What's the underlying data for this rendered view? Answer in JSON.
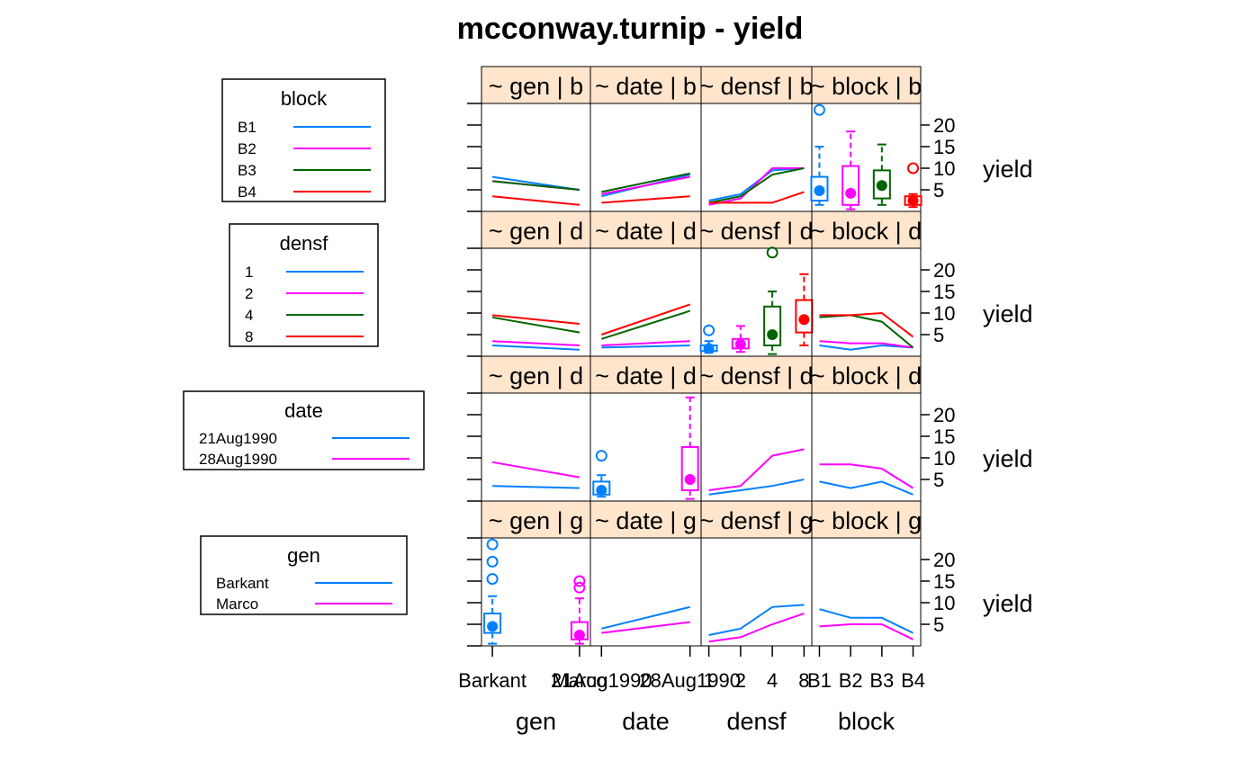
{
  "colors": {
    "c1": "#0080ff",
    "c2": "#ff00ff",
    "c3": "#006400",
    "c4": "#ff0000",
    "strip": "#ffe5cc",
    "panel_border": "#000000"
  },
  "chart_data": {
    "type": "scatterplot-matrix",
    "title": "mcconway.turnip - yield",
    "response": "yield",
    "ylim": [
      0,
      25
    ],
    "yticks": [
      5,
      10,
      15,
      20
    ],
    "columns": [
      {
        "name": "gen",
        "levels": [
          "Barkant",
          "Marco"
        ],
        "tick_labels": [
          "Barkant",
          "Marco"
        ]
      },
      {
        "name": "date",
        "levels": [
          "21Aug1990",
          "28Aug1990"
        ],
        "tick_labels": [
          "21Aug1990",
          "28Aug1990"
        ]
      },
      {
        "name": "densf",
        "levels": [
          "1",
          "2",
          "4",
          "8"
        ],
        "tick_labels": [
          "1",
          "2",
          "4",
          "8"
        ]
      },
      {
        "name": "block",
        "levels": [
          "B1",
          "B2",
          "B3",
          "B4"
        ],
        "tick_labels": [
          "B1",
          "B2",
          "B3",
          "B4"
        ]
      }
    ],
    "strip_labels": [
      [
        "~ gen | b",
        "~ date | b",
        "~ densf | b",
        "~ block | b"
      ],
      [
        "~ gen | d",
        "~ date | d",
        "~ densf | d",
        "~ block | d"
      ],
      [
        "~ gen | d",
        "~ date | d",
        "~ densf | d",
        "~ block | d"
      ],
      [
        "~ gen | g",
        "~ date | g",
        "~ densf | g",
        "~ block | g"
      ]
    ],
    "rows": [
      {
        "group": "block",
        "group_levels": [
          "B1",
          "B2",
          "B3",
          "B4"
        ],
        "panels": [
          {
            "kind": "lines",
            "series": [
              [
                8.0,
                5.0
              ],
              [
                7.0,
                5.0
              ],
              [
                7.0,
                5.0
              ],
              [
                3.5,
                1.5
              ]
            ]
          },
          {
            "kind": "lines",
            "series": [
              [
                3.5,
                8.5
              ],
              [
                4.0,
                8.0
              ],
              [
                4.5,
                8.8
              ],
              [
                2.0,
                3.5
              ]
            ]
          },
          {
            "kind": "lines",
            "series": [
              [
                2.5,
                4.0,
                9.5,
                10.0
              ],
              [
                1.5,
                3.0,
                10.0,
                10.0
              ],
              [
                2.0,
                3.5,
                8.5,
                10.0
              ],
              [
                2.0,
                2.0,
                2.0,
                4.5
              ]
            ]
          },
          {
            "kind": "box",
            "boxes": [
              {
                "min": 1.5,
                "q1": 2.5,
                "med": 4.8,
                "q3": 8.0,
                "max": 15.0,
                "out": [
                  23.5
                ]
              },
              {
                "min": 0.5,
                "q1": 1.5,
                "med": 4.2,
                "q3": 10.5,
                "max": 18.5,
                "out": []
              },
              {
                "min": 1.5,
                "q1": 3.0,
                "med": 6.0,
                "q3": 9.5,
                "max": 15.5,
                "out": []
              },
              {
                "min": 1.0,
                "q1": 1.5,
                "med": 2.5,
                "q3": 3.5,
                "max": 4.0,
                "out": [
                  10.0
                ]
              }
            ]
          }
        ]
      },
      {
        "group": "densf",
        "group_levels": [
          "1",
          "2",
          "4",
          "8"
        ],
        "panels": [
          {
            "kind": "lines",
            "series": [
              [
                2.5,
                1.5
              ],
              [
                3.5,
                2.5
              ],
              [
                9.0,
                5.5
              ],
              [
                9.5,
                7.5
              ]
            ]
          },
          {
            "kind": "lines",
            "series": [
              [
                2.0,
                2.5
              ],
              [
                2.5,
                3.5
              ],
              [
                4.0,
                10.5
              ],
              [
                5.0,
                12.0
              ]
            ]
          },
          {
            "kind": "box",
            "boxes": [
              {
                "min": 0.8,
                "q1": 1.2,
                "med": 1.8,
                "q3": 2.5,
                "max": 3.5,
                "out": [
                  6.0
                ]
              },
              {
                "min": 1.0,
                "q1": 1.8,
                "med": 2.8,
                "q3": 4.0,
                "max": 7.0,
                "out": []
              },
              {
                "min": 0.5,
                "q1": 2.5,
                "med": 5.0,
                "q3": 11.5,
                "max": 15.0,
                "out": [
                  24.0
                ]
              },
              {
                "min": 2.5,
                "q1": 5.5,
                "med": 8.5,
                "q3": 13.0,
                "max": 19.0,
                "out": []
              }
            ]
          },
          {
            "kind": "lines",
            "series": [
              [
                2.5,
                1.5,
                2.5,
                2.0
              ],
              [
                3.5,
                3.0,
                3.0,
                2.0
              ],
              [
                9.0,
                9.5,
                8.0,
                2.0
              ],
              [
                9.5,
                9.5,
                10.0,
                4.5
              ]
            ]
          }
        ]
      },
      {
        "group": "date",
        "group_levels": [
          "21Aug1990",
          "28Aug1990"
        ],
        "panels": [
          {
            "kind": "lines",
            "series": [
              [
                3.5,
                3.0
              ],
              [
                9.0,
                5.5
              ]
            ]
          },
          {
            "kind": "box",
            "boxes": [
              {
                "min": 1.0,
                "q1": 1.5,
                "med": 2.5,
                "q3": 4.5,
                "max": 6.0,
                "out": [
                  10.5
                ]
              },
              {
                "min": 0.5,
                "q1": 2.5,
                "med": 5.0,
                "q3": 12.5,
                "max": 24.0,
                "out": []
              }
            ]
          },
          {
            "kind": "lines",
            "series": [
              [
                1.5,
                2.5,
                3.5,
                5.0
              ],
              [
                2.5,
                3.5,
                10.5,
                12.0
              ]
            ]
          },
          {
            "kind": "lines",
            "series": [
              [
                4.5,
                3.0,
                4.5,
                1.5
              ],
              [
                8.5,
                8.5,
                7.5,
                3.0
              ]
            ]
          }
        ]
      },
      {
        "group": "gen",
        "group_levels": [
          "Barkant",
          "Marco"
        ],
        "panels": [
          {
            "kind": "box",
            "boxes": [
              {
                "min": 0.5,
                "q1": 3.0,
                "med": 4.5,
                "q3": 7.5,
                "max": 11.5,
                "out": [
                  15.5,
                  19.5,
                  23.5
                ]
              },
              {
                "min": 0.5,
                "q1": 1.5,
                "med": 2.5,
                "q3": 5.5,
                "max": 11.0,
                "out": [
                  13.5,
                  15.0
                ]
              }
            ]
          },
          {
            "kind": "lines",
            "series": [
              [
                4.0,
                9.0
              ],
              [
                3.0,
                5.5
              ]
            ]
          },
          {
            "kind": "lines",
            "series": [
              [
                2.5,
                4.0,
                9.0,
                9.5
              ],
              [
                1.0,
                2.0,
                5.0,
                7.5
              ]
            ]
          },
          {
            "kind": "lines",
            "series": [
              [
                8.5,
                6.5,
                6.5,
                3.0
              ],
              [
                4.5,
                5.0,
                5.0,
                1.5
              ]
            ]
          }
        ]
      }
    ]
  }
}
